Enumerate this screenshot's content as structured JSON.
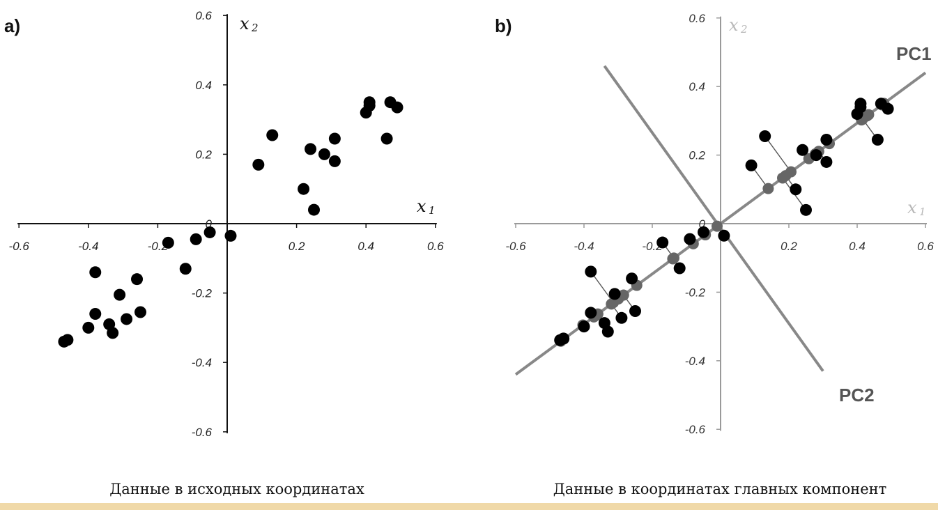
{
  "chart_data": [
    {
      "type": "scatter",
      "panel_label": "a)",
      "title": "",
      "caption": "Данные в исходных координатах",
      "xlabel": "x",
      "xlabel_sub": "1",
      "ylabel": "x",
      "ylabel_sub": "2",
      "xlim": [
        -0.6,
        0.6
      ],
      "ylim": [
        -0.6,
        0.6
      ],
      "x_ticks": [
        "-0.6",
        "-0.4",
        "-0.2",
        "0",
        "0.2",
        "0.4",
        "0.6"
      ],
      "y_ticks": [
        "0.6",
        "0.4",
        "0.2",
        "0",
        "-0.2",
        "-0.4",
        "-0.6"
      ],
      "grid": false,
      "point_color": "#000000",
      "points": [
        [
          -0.47,
          -0.34
        ],
        [
          -0.46,
          -0.335
        ],
        [
          -0.4,
          -0.3
        ],
        [
          -0.38,
          -0.26
        ],
        [
          -0.34,
          -0.29
        ],
        [
          -0.33,
          -0.315
        ],
        [
          -0.29,
          -0.275
        ],
        [
          -0.31,
          -0.205
        ],
        [
          -0.25,
          -0.255
        ],
        [
          -0.26,
          -0.16
        ],
        [
          -0.38,
          -0.14
        ],
        [
          -0.17,
          -0.055
        ],
        [
          -0.12,
          -0.13
        ],
        [
          -0.09,
          -0.045
        ],
        [
          -0.05,
          -0.025
        ],
        [
          0.01,
          -0.035
        ],
        [
          0.09,
          0.17
        ],
        [
          0.13,
          0.255
        ],
        [
          0.22,
          0.1
        ],
        [
          0.24,
          0.215
        ],
        [
          0.25,
          0.04
        ],
        [
          0.28,
          0.2
        ],
        [
          0.31,
          0.245
        ],
        [
          0.31,
          0.18
        ],
        [
          0.4,
          0.32
        ],
        [
          0.41,
          0.34
        ],
        [
          0.41,
          0.35
        ],
        [
          0.47,
          0.35
        ],
        [
          0.49,
          0.335
        ],
        [
          0.46,
          0.245
        ]
      ]
    },
    {
      "type": "scatter",
      "panel_label": "b)",
      "title": "",
      "caption": "Данные в координатах главных компонент",
      "xlabel": "x",
      "xlabel_sub": "1",
      "ylabel": "x",
      "ylabel_sub": "2",
      "xlim": [
        -0.6,
        0.6
      ],
      "ylim": [
        -0.6,
        0.6
      ],
      "x_ticks": [
        "-0.6",
        "-0.4",
        "-0.2",
        "0",
        "0.2",
        "0.4",
        "0.6"
      ],
      "y_ticks": [
        "0.6",
        "0.4",
        "0.2",
        "0",
        "-0.2",
        "-0.4",
        "-0.6"
      ],
      "grid": false,
      "point_color": "#000000",
      "projection_color": "#555555",
      "axis_color": "#888888",
      "pc_axes": [
        {
          "name": "PC1",
          "from": [
            -0.6,
            -0.44
          ],
          "to": [
            0.6,
            0.44
          ]
        },
        {
          "name": "PC2",
          "from": [
            -0.34,
            0.46
          ],
          "to": [
            0.3,
            -0.43
          ]
        }
      ],
      "points": [
        [
          -0.47,
          -0.34
        ],
        [
          -0.46,
          -0.335
        ],
        [
          -0.4,
          -0.3
        ],
        [
          -0.38,
          -0.26
        ],
        [
          -0.34,
          -0.29
        ],
        [
          -0.33,
          -0.315
        ],
        [
          -0.29,
          -0.275
        ],
        [
          -0.31,
          -0.205
        ],
        [
          -0.25,
          -0.255
        ],
        [
          -0.26,
          -0.16
        ],
        [
          -0.38,
          -0.14
        ],
        [
          -0.17,
          -0.055
        ],
        [
          -0.12,
          -0.13
        ],
        [
          -0.09,
          -0.045
        ],
        [
          -0.05,
          -0.025
        ],
        [
          0.01,
          -0.035
        ],
        [
          0.09,
          0.17
        ],
        [
          0.13,
          0.255
        ],
        [
          0.22,
          0.1
        ],
        [
          0.24,
          0.215
        ],
        [
          0.25,
          0.04
        ],
        [
          0.28,
          0.2
        ],
        [
          0.31,
          0.245
        ],
        [
          0.31,
          0.18
        ],
        [
          0.4,
          0.32
        ],
        [
          0.41,
          0.34
        ],
        [
          0.41,
          0.35
        ],
        [
          0.47,
          0.35
        ],
        [
          0.49,
          0.335
        ],
        [
          0.46,
          0.245
        ]
      ]
    }
  ]
}
